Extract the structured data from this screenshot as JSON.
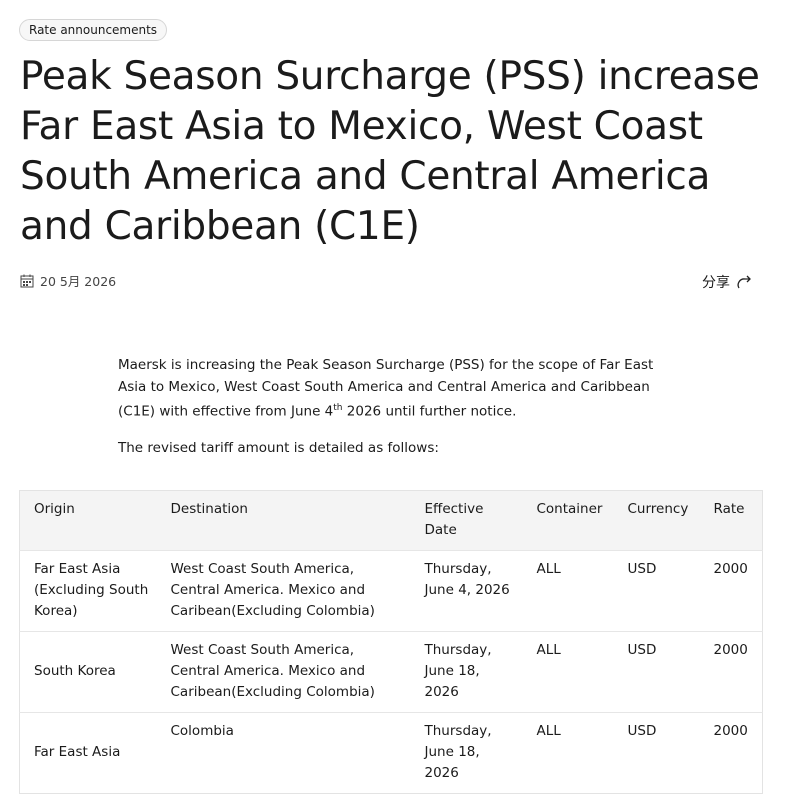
{
  "header": {
    "tag": "Rate announcements",
    "title_lines": [
      "Peak Season Surcharge (PSS) increase",
      "Far East Asia to Mexico, West Coast",
      "South America and Central America",
      "and Caribbean (C1E)"
    ],
    "date": "20 5月 2026",
    "share": "分享"
  },
  "body": {
    "intro": [
      "Maersk is increasing the Peak Season Surcharge (PSS) for the scope of Far East Asia to Mexico, West Coast South America and Central America and Caribbean (C1E) with effective from June 4",
      "th",
      " 2026 until further notice."
    ],
    "detail": "The revised tariff amount is detailed as follows:"
  },
  "table": {
    "headers": [
      "Origin",
      "Destination",
      "Effective Date",
      "Container",
      "Currency",
      "Rate"
    ],
    "rows": [
      [
        "Far East Asia (Excluding South Korea)",
        "West Coast South America, Central America. Mexico and Caribean(Excluding Colombia)",
        "Thursday, June 4, 2026",
        "ALL",
        "USD",
        "2000"
      ],
      [
        "South Korea",
        "West Coast South America, Central America. Mexico and Caribean(Excluding Colombia)",
        "Thursday, June 18, 2026",
        "ALL",
        "USD",
        "2000"
      ],
      [
        "Far East Asia",
        "Colombia",
        "Thursday, June 18, 2026",
        "ALL",
        "USD",
        "2000"
      ]
    ]
  }
}
